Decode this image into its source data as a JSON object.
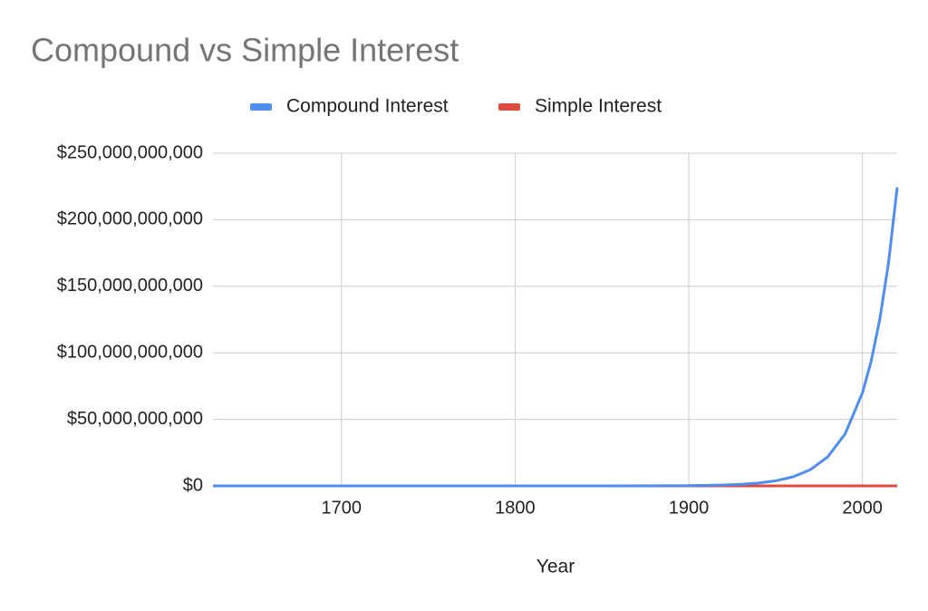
{
  "chart_data": {
    "type": "line",
    "title": "Compound vs Simple Interest",
    "x_label": "Year",
    "x": [
      1626,
      1650,
      1700,
      1750,
      1800,
      1850,
      1900,
      1910,
      1920,
      1930,
      1940,
      1950,
      1960,
      1970,
      1980,
      1990,
      2000,
      2005,
      2010,
      2015,
      2020
    ],
    "series": [
      {
        "name": "Compound Interest",
        "color": "#4f8ef0",
        "values": [
          24,
          97,
          1790,
          32980,
          607000,
          11180000,
          206000000,
          369000000,
          661000000,
          1180000000,
          2120000000,
          3800000000,
          6800000000,
          12180000000,
          21810000000,
          39060000000,
          69950000000,
          93600000000,
          125270000000,
          167600000000,
          224300000000
        ]
      },
      {
        "name": "Simple Interest",
        "color": "#e04b3f",
        "values": [
          24,
          59,
          131,
          203,
          275,
          347,
          419,
          433,
          447,
          462,
          476,
          491,
          505,
          519,
          534,
          548,
          563,
          570,
          577,
          584,
          591
        ]
      }
    ],
    "xlim": [
      1626,
      2020
    ],
    "xticks": [
      1700,
      1800,
      1900,
      2000
    ],
    "ylim": [
      0,
      250000000000
    ],
    "yticks": [
      {
        "value": 0,
        "label": "$0"
      },
      {
        "value": 50000000000,
        "label": "$50,000,000,000"
      },
      {
        "value": 100000000000,
        "label": "$100,000,000,000"
      },
      {
        "value": 150000000000,
        "label": "$150,000,000,000"
      },
      {
        "value": 200000000000,
        "label": "$200,000,000,000"
      },
      {
        "value": 250000000000,
        "label": "$250,000,000,000"
      }
    ],
    "grid": true,
    "legend": "top"
  }
}
